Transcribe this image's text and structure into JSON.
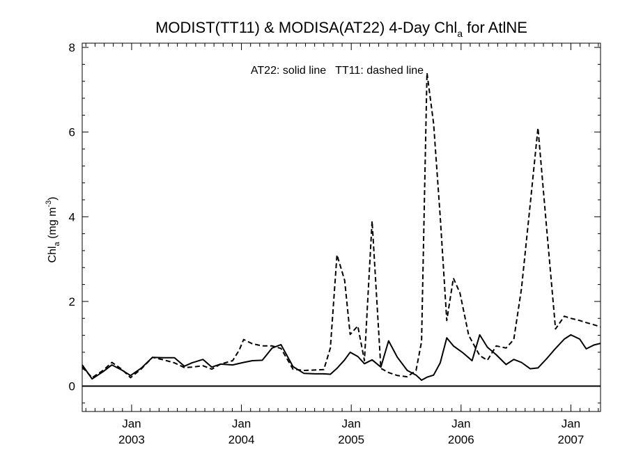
{
  "chart_data": {
    "type": "line",
    "title": {
      "before_sub": "MODIST(TT11) & MODISA(AT22) 4-Day Chl",
      "sub": "a",
      "after_sub": " for AtlNE"
    },
    "annotation": "AT22: solid line   TT11: dashed line",
    "ylabel": {
      "main": "Chl",
      "sub": "a",
      "units_open": " (mg m",
      "units_sup": "-3",
      "units_close": ")"
    },
    "xlim": [
      2002.55,
      2007.27
    ],
    "ylim": [
      -0.6,
      8.1
    ],
    "y_ticks": [
      0,
      2,
      4,
      6,
      8
    ],
    "x_ticks": [
      {
        "x": 2003.0,
        "month": "Jan",
        "year": "2003"
      },
      {
        "x": 2004.0,
        "month": "Jan",
        "year": "2004"
      },
      {
        "x": 2005.0,
        "month": "Jan",
        "year": "2005"
      },
      {
        "x": 2006.0,
        "month": "Jan",
        "year": "2006"
      },
      {
        "x": 2007.0,
        "month": "Jan",
        "year": "2007"
      }
    ],
    "zero_line": 0,
    "grid": false,
    "series": [
      {
        "name": "AT22",
        "style": "solid",
        "x": [
          2002.55,
          2002.64,
          2002.74,
          2002.82,
          2002.91,
          2002.99,
          2003.09,
          2003.19,
          2003.29,
          2003.39,
          2003.48,
          2003.55,
          2003.65,
          2003.73,
          2003.81,
          2003.92,
          2004.02,
          2004.1,
          2004.19,
          2004.28,
          2004.36,
          2004.47,
          2004.57,
          2004.67,
          2004.75,
          2004.81,
          2004.87,
          2004.94,
          2004.99,
          2005.06,
          2005.12,
          2005.19,
          2005.27,
          2005.34,
          2005.42,
          2005.51,
          2005.59,
          2005.64,
          2005.69,
          2005.75,
          2005.81,
          2005.87,
          2005.93,
          2006.02,
          2006.1,
          2006.17,
          2006.24,
          2006.32,
          2006.41,
          2006.48,
          2006.55,
          2006.63,
          2006.7,
          2006.78,
          2006.86,
          2006.94,
          2007.0,
          2007.08,
          2007.14,
          2007.21,
          2007.27
        ],
        "y": [
          0.5,
          0.17,
          0.34,
          0.5,
          0.38,
          0.25,
          0.43,
          0.68,
          0.67,
          0.67,
          0.47,
          0.55,
          0.63,
          0.45,
          0.52,
          0.5,
          0.56,
          0.6,
          0.61,
          0.9,
          0.98,
          0.46,
          0.3,
          0.29,
          0.29,
          0.28,
          0.42,
          0.62,
          0.8,
          0.7,
          0.53,
          0.62,
          0.45,
          1.07,
          0.68,
          0.37,
          0.26,
          0.14,
          0.21,
          0.26,
          0.55,
          1.14,
          0.95,
          0.78,
          0.6,
          1.21,
          0.92,
          0.74,
          0.51,
          0.63,
          0.56,
          0.41,
          0.43,
          0.65,
          0.89,
          1.11,
          1.21,
          1.11,
          0.88,
          0.97,
          1.01
        ]
      },
      {
        "name": "TT11",
        "style": "dashed",
        "x": [
          2002.55,
          2002.64,
          2002.74,
          2002.82,
          2002.91,
          2002.99,
          2003.09,
          2003.19,
          2003.29,
          2003.39,
          2003.48,
          2003.55,
          2003.65,
          2003.73,
          2003.81,
          2003.92,
          2003.98,
          2004.02,
          2004.1,
          2004.19,
          2004.28,
          2004.36,
          2004.47,
          2004.57,
          2004.67,
          2004.75,
          2004.81,
          2004.87,
          2004.94,
          2004.99,
          2005.06,
          2005.12,
          2005.19,
          2005.27,
          2005.34,
          2005.42,
          2005.51,
          2005.59,
          2005.64,
          2005.69,
          2005.75,
          2005.81,
          2005.87,
          2005.93,
          2005.99,
          2006.07,
          2006.17,
          2006.24,
          2006.32,
          2006.41,
          2006.48,
          2006.55,
          2006.63,
          2006.7,
          2006.78,
          2006.86,
          2006.94,
          2007.0,
          2007.08,
          2007.14,
          2007.21,
          2007.27
        ],
        "y": [
          0.45,
          0.2,
          0.37,
          0.56,
          0.4,
          0.2,
          0.41,
          0.68,
          0.62,
          0.55,
          0.44,
          0.45,
          0.48,
          0.4,
          0.52,
          0.6,
          0.85,
          1.1,
          1.0,
          0.95,
          0.95,
          0.89,
          0.4,
          0.37,
          0.38,
          0.39,
          0.9,
          3.1,
          2.5,
          1.22,
          1.42,
          0.6,
          3.9,
          0.42,
          0.32,
          0.25,
          0.22,
          0.37,
          1.05,
          7.4,
          6.2,
          4.0,
          1.55,
          2.55,
          2.2,
          1.2,
          0.72,
          0.61,
          0.95,
          0.9,
          1.1,
          2.3,
          4.3,
          6.1,
          3.7,
          1.35,
          1.65,
          1.6,
          1.55,
          1.5,
          1.45,
          1.4
        ]
      }
    ]
  }
}
